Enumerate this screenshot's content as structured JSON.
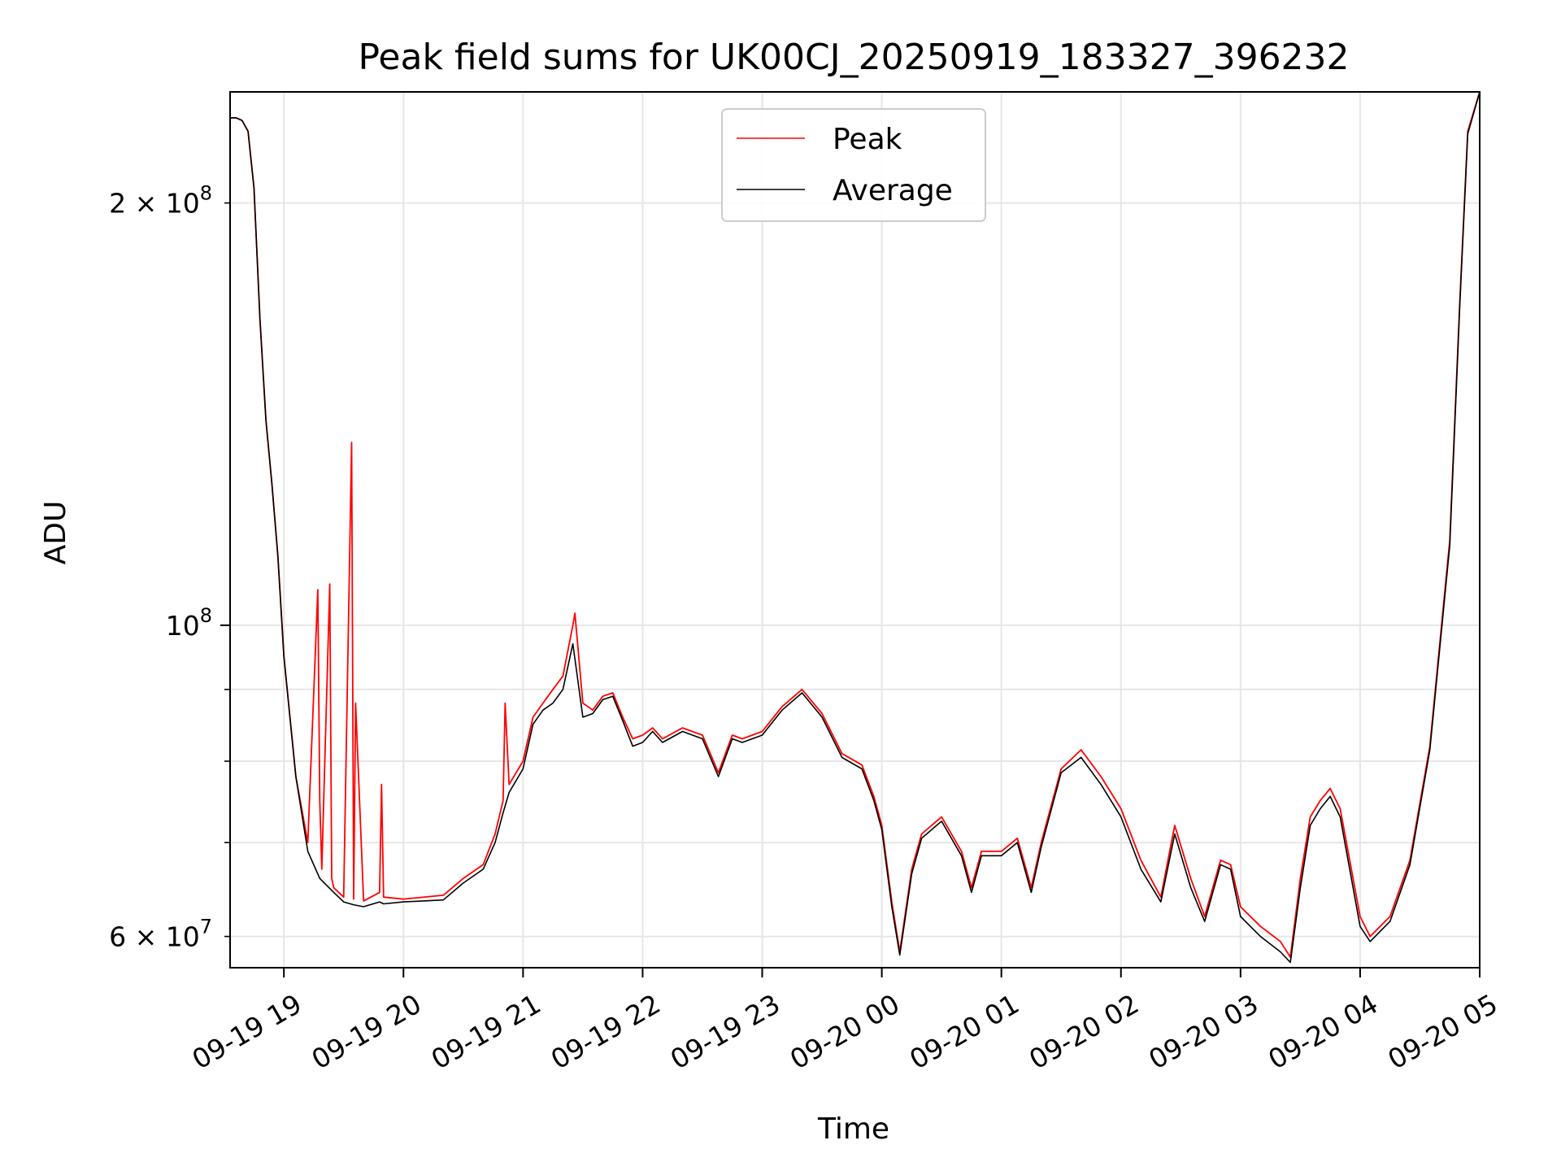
{
  "chart_data": {
    "type": "line",
    "title": "Peak field sums for UK00CJ_20250919_183327_396232",
    "xlabel": "Time",
    "ylabel": "ADU",
    "yscale": "log",
    "xlim": [
      "2025-09-19T18:33",
      "2025-09-20T05:00"
    ],
    "ylim": [
      57000000,
      240000000
    ],
    "grid": true,
    "legend_position": "top-center",
    "x_ticks": [
      {
        "label": "09-19 19",
        "value": "2025-09-19T19:00"
      },
      {
        "label": "09-19 20",
        "value": "2025-09-19T20:00"
      },
      {
        "label": "09-19 21",
        "value": "2025-09-19T21:00"
      },
      {
        "label": "09-19 22",
        "value": "2025-09-19T22:00"
      },
      {
        "label": "09-19 23",
        "value": "2025-09-19T23:00"
      },
      {
        "label": "09-20 00",
        "value": "2025-09-20T00:00"
      },
      {
        "label": "09-20 01",
        "value": "2025-09-20T01:00"
      },
      {
        "label": "09-20 02",
        "value": "2025-09-20T02:00"
      },
      {
        "label": "09-20 03",
        "value": "2025-09-20T03:00"
      },
      {
        "label": "09-20 04",
        "value": "2025-09-20T04:00"
      },
      {
        "label": "09-20 05",
        "value": "2025-09-20T05:00"
      }
    ],
    "y_ticks_major": [
      {
        "label_base": "10",
        "label_exp": "8",
        "label_prefix": "",
        "value": 100000000
      }
    ],
    "y_ticks_minor_labeled": [
      {
        "label_prefix": "2 × ",
        "label_base": "10",
        "label_exp": "8",
        "value": 200000000
      },
      {
        "label_prefix": "6 × ",
        "label_base": "10",
        "label_exp": "7",
        "value": 60000000
      }
    ],
    "y_minor_ticks": [
      70000000,
      80000000,
      90000000
    ],
    "series": [
      {
        "name": "Peak",
        "color": "#ff0000",
        "x": [
          "2025-09-19T18:33",
          "2025-09-19T18:36",
          "2025-09-19T18:39",
          "2025-09-19T18:42",
          "2025-09-19T18:45",
          "2025-09-19T18:48",
          "2025-09-19T18:51",
          "2025-09-19T18:54",
          "2025-09-19T18:57",
          "2025-09-19T19:00",
          "2025-09-19T19:06",
          "2025-09-19T19:12",
          "2025-09-19T19:17",
          "2025-09-19T19:18",
          "2025-09-19T19:19",
          "2025-09-19T19:23",
          "2025-09-19T19:24",
          "2025-09-19T19:25",
          "2025-09-19T19:30",
          "2025-09-19T19:34",
          "2025-09-19T19:35",
          "2025-09-19T19:36",
          "2025-09-19T19:40",
          "2025-09-19T19:48",
          "2025-09-19T19:49",
          "2025-09-19T19:50",
          "2025-09-19T20:00",
          "2025-09-19T20:20",
          "2025-09-19T20:30",
          "2025-09-19T20:40",
          "2025-09-19T20:46",
          "2025-09-19T20:50",
          "2025-09-19T20:51",
          "2025-09-19T20:53",
          "2025-09-19T21:00",
          "2025-09-19T21:05",
          "2025-09-19T21:10",
          "2025-09-19T21:15",
          "2025-09-19T21:20",
          "2025-09-19T21:25",
          "2025-09-19T21:26",
          "2025-09-19T21:30",
          "2025-09-19T21:35",
          "2025-09-19T21:40",
          "2025-09-19T21:45",
          "2025-09-19T21:50",
          "2025-09-19T21:55",
          "2025-09-19T22:00",
          "2025-09-19T22:05",
          "2025-09-19T22:10",
          "2025-09-19T22:20",
          "2025-09-19T22:30",
          "2025-09-19T22:38",
          "2025-09-19T22:45",
          "2025-09-19T22:50",
          "2025-09-19T23:00",
          "2025-09-19T23:10",
          "2025-09-19T23:20",
          "2025-09-19T23:30",
          "2025-09-19T23:40",
          "2025-09-19T23:50",
          "2025-09-19T23:56",
          "2025-09-20T00:00",
          "2025-09-20T00:05",
          "2025-09-20T00:09",
          "2025-09-20T00:15",
          "2025-09-20T00:20",
          "2025-09-20T00:30",
          "2025-09-20T00:40",
          "2025-09-20T00:45",
          "2025-09-20T00:50",
          "2025-09-20T01:00",
          "2025-09-20T01:08",
          "2025-09-20T01:15",
          "2025-09-20T01:20",
          "2025-09-20T01:30",
          "2025-09-20T01:40",
          "2025-09-20T01:50",
          "2025-09-20T02:00",
          "2025-09-20T02:10",
          "2025-09-20T02:20",
          "2025-09-20T02:27",
          "2025-09-20T02:35",
          "2025-09-20T02:42",
          "2025-09-20T02:50",
          "2025-09-20T02:55",
          "2025-09-20T03:00",
          "2025-09-20T03:10",
          "2025-09-20T03:20",
          "2025-09-20T03:25",
          "2025-09-20T03:30",
          "2025-09-20T03:35",
          "2025-09-20T03:40",
          "2025-09-20T03:45",
          "2025-09-20T03:50",
          "2025-09-20T04:00",
          "2025-09-20T04:05",
          "2025-09-20T04:15",
          "2025-09-20T04:25",
          "2025-09-20T04:35",
          "2025-09-20T04:45",
          "2025-09-20T04:50",
          "2025-09-20T04:54",
          "2025-09-20T05:00"
        ],
        "y": [
          230000000,
          230000000,
          229000000,
          225000000,
          205000000,
          165000000,
          140000000,
          126000000,
          112000000,
          95000000,
          78000000,
          70000000,
          106000000,
          75000000,
          67000000,
          107000000,
          66000000,
          65000000,
          64000000,
          135000000,
          63800000,
          88000000,
          63600000,
          64500000,
          77000000,
          64000000,
          63800000,
          64200000,
          66000000,
          67500000,
          71000000,
          75000000,
          88000000,
          77000000,
          80000000,
          86000000,
          88000000,
          90000000,
          92000000,
          100000000,
          102000000,
          88000000,
          87000000,
          89000000,
          89500000,
          86000000,
          83000000,
          83500000,
          84500000,
          83000000,
          84500000,
          83500000,
          78500000,
          83500000,
          83000000,
          84000000,
          87500000,
          90000000,
          86500000,
          81000000,
          79500000,
          75500000,
          72000000,
          63500000,
          58500000,
          67000000,
          71000000,
          73000000,
          69000000,
          65000000,
          69000000,
          69000000,
          70500000,
          65000000,
          70000000,
          79000000,
          81500000,
          78000000,
          74000000,
          68000000,
          64000000,
          72000000,
          66000000,
          62000000,
          68000000,
          67500000,
          63000000,
          61000000,
          59500000,
          58000000,
          66000000,
          73000000,
          75000000,
          76500000,
          74000000,
          62000000,
          60000000,
          62000000,
          68000000,
          82000000,
          115000000,
          170000000,
          225000000,
          240000000
        ]
      },
      {
        "name": "Average",
        "color": "#000000",
        "x": [
          "2025-09-19T18:33",
          "2025-09-19T18:36",
          "2025-09-19T18:39",
          "2025-09-19T18:42",
          "2025-09-19T18:45",
          "2025-09-19T18:48",
          "2025-09-19T18:51",
          "2025-09-19T18:54",
          "2025-09-19T18:57",
          "2025-09-19T19:00",
          "2025-09-19T19:06",
          "2025-09-19T19:12",
          "2025-09-19T19:18",
          "2025-09-19T19:25",
          "2025-09-19T19:30",
          "2025-09-19T19:35",
          "2025-09-19T19:40",
          "2025-09-19T19:48",
          "2025-09-19T19:50",
          "2025-09-19T20:00",
          "2025-09-19T20:20",
          "2025-09-19T20:30",
          "2025-09-19T20:40",
          "2025-09-19T20:46",
          "2025-09-19T20:50",
          "2025-09-19T20:53",
          "2025-09-19T21:00",
          "2025-09-19T21:05",
          "2025-09-19T21:10",
          "2025-09-19T21:15",
          "2025-09-19T21:20",
          "2025-09-19T21:25",
          "2025-09-19T21:30",
          "2025-09-19T21:35",
          "2025-09-19T21:40",
          "2025-09-19T21:45",
          "2025-09-19T21:50",
          "2025-09-19T21:55",
          "2025-09-19T22:00",
          "2025-09-19T22:05",
          "2025-09-19T22:10",
          "2025-09-19T22:20",
          "2025-09-19T22:30",
          "2025-09-19T22:38",
          "2025-09-19T22:45",
          "2025-09-19T22:50",
          "2025-09-19T23:00",
          "2025-09-19T23:10",
          "2025-09-19T23:20",
          "2025-09-19T23:30",
          "2025-09-19T23:40",
          "2025-09-19T23:50",
          "2025-09-19T23:56",
          "2025-09-20T00:00",
          "2025-09-20T00:05",
          "2025-09-20T00:09",
          "2025-09-20T00:15",
          "2025-09-20T00:20",
          "2025-09-20T00:30",
          "2025-09-20T00:40",
          "2025-09-20T00:45",
          "2025-09-20T00:50",
          "2025-09-20T01:00",
          "2025-09-20T01:08",
          "2025-09-20T01:15",
          "2025-09-20T01:20",
          "2025-09-20T01:30",
          "2025-09-20T01:40",
          "2025-09-20T01:50",
          "2025-09-20T02:00",
          "2025-09-20T02:10",
          "2025-09-20T02:20",
          "2025-09-20T02:27",
          "2025-09-20T02:35",
          "2025-09-20T02:42",
          "2025-09-20T02:50",
          "2025-09-20T02:55",
          "2025-09-20T03:00",
          "2025-09-20T03:10",
          "2025-09-20T03:20",
          "2025-09-20T03:25",
          "2025-09-20T03:30",
          "2025-09-20T03:35",
          "2025-09-20T03:40",
          "2025-09-20T03:45",
          "2025-09-20T03:50",
          "2025-09-20T04:00",
          "2025-09-20T04:05",
          "2025-09-20T04:15",
          "2025-09-20T04:25",
          "2025-09-20T04:35",
          "2025-09-20T04:45",
          "2025-09-20T04:50",
          "2025-09-20T04:54",
          "2025-09-20T05:00"
        ],
        "y": [
          230000000,
          230000000,
          229000000,
          225000000,
          205000000,
          165000000,
          140000000,
          126000000,
          112000000,
          95000000,
          78000000,
          69000000,
          66000000,
          64500000,
          63500000,
          63200000,
          63000000,
          63500000,
          63300000,
          63500000,
          63700000,
          65500000,
          67000000,
          70000000,
          73500000,
          76000000,
          79000000,
          85000000,
          87000000,
          88000000,
          90000000,
          97000000,
          86000000,
          86500000,
          88500000,
          89000000,
          85500000,
          82000000,
          82500000,
          84000000,
          82500000,
          84000000,
          83000000,
          78000000,
          83000000,
          82500000,
          83500000,
          87000000,
          89500000,
          86000000,
          80500000,
          79000000,
          75000000,
          71500000,
          63000000,
          58200000,
          66500000,
          70500000,
          72500000,
          68500000,
          64500000,
          68500000,
          68500000,
          70000000,
          64500000,
          69500000,
          78500000,
          80500000,
          77000000,
          73000000,
          67000000,
          63500000,
          71000000,
          65000000,
          61500000,
          67500000,
          67000000,
          62000000,
          60000000,
          58500000,
          57500000,
          65000000,
          72000000,
          74000000,
          75500000,
          73000000,
          61000000,
          59500000,
          61500000,
          67500000,
          81500000,
          114000000,
          169000000,
          224000000,
          240000000
        ]
      }
    ]
  }
}
